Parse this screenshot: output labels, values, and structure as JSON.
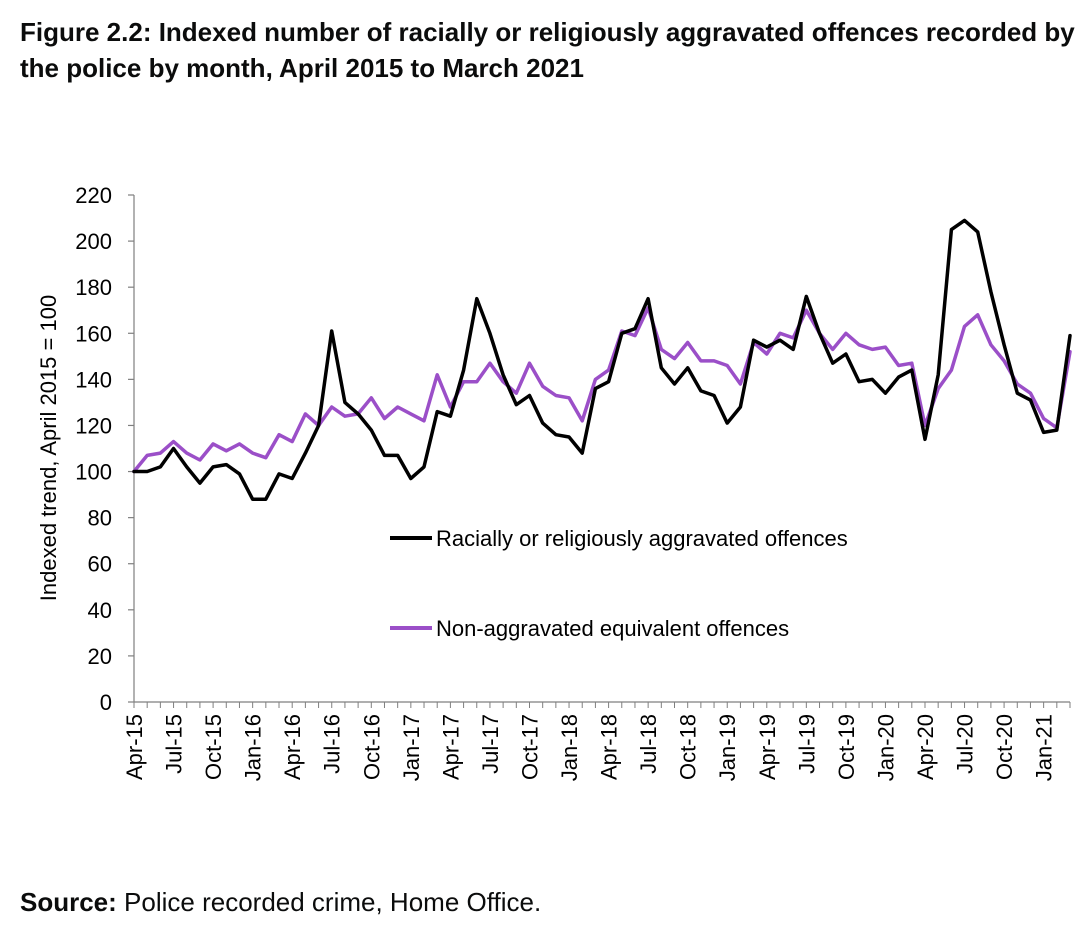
{
  "figure": {
    "title": "Figure 2.2: Indexed number of racially or religiously aggravated offences recorded by the police by month, April 2015 to March 2021",
    "source_label": "Source:",
    "source_text": "Police recorded crime, Home Office."
  },
  "chart_data": {
    "type": "line",
    "ylabel": "Indexed trend, April 2015 = 100",
    "xlabel": "",
    "ylim": [
      0,
      220
    ],
    "yticks": [
      0,
      20,
      40,
      60,
      80,
      100,
      120,
      140,
      160,
      180,
      200,
      220
    ],
    "grid": false,
    "legend_position": "inside-center",
    "x_tick_labels": [
      "Apr-15",
      "Jul-15",
      "Oct-15",
      "Jan-16",
      "Apr-16",
      "Jul-16",
      "Oct-16",
      "Jan-17",
      "Apr-17",
      "Jul-17",
      "Oct-17",
      "Jan-18",
      "Apr-18",
      "Jul-18",
      "Oct-18",
      "Jan-19",
      "Apr-19",
      "Jul-19",
      "Oct-19",
      "Jan-20",
      "Apr-20",
      "Jul-20",
      "Oct-20",
      "Jan-21"
    ],
    "x_tick_every": 3,
    "series": [
      {
        "name": "Racially or religiously aggravated offences",
        "color": "#000000",
        "values": [
          100,
          100,
          102,
          110,
          102,
          95,
          102,
          103,
          99,
          88,
          88,
          99,
          97,
          108,
          120,
          161,
          130,
          125,
          118,
          107,
          107,
          97,
          102,
          126,
          124,
          144,
          175,
          160,
          142,
          129,
          133,
          121,
          116,
          115,
          108,
          136,
          139,
          160,
          162,
          175,
          145,
          138,
          145,
          135,
          133,
          121,
          128,
          157,
          154,
          157,
          153,
          176,
          160,
          147,
          151,
          139,
          140,
          134,
          141,
          144,
          114,
          142,
          205,
          209,
          204,
          178,
          155,
          134,
          131,
          117,
          118,
          159
        ]
      },
      {
        "name": "Non-aggravated equivalent offences",
        "color": "#9b4fc8",
        "values": [
          100,
          107,
          108,
          113,
          108,
          105,
          112,
          109,
          112,
          108,
          106,
          116,
          113,
          125,
          120,
          128,
          124,
          125,
          132,
          123,
          128,
          125,
          122,
          142,
          128,
          139,
          139,
          147,
          139,
          134,
          147,
          137,
          133,
          132,
          122,
          140,
          144,
          161,
          159,
          171,
          153,
          149,
          156,
          148,
          148,
          146,
          138,
          156,
          151,
          160,
          158,
          170,
          160,
          153,
          160,
          155,
          153,
          154,
          146,
          147,
          120,
          136,
          144,
          163,
          168,
          155,
          148,
          138,
          134,
          123,
          119,
          152
        ]
      }
    ]
  }
}
